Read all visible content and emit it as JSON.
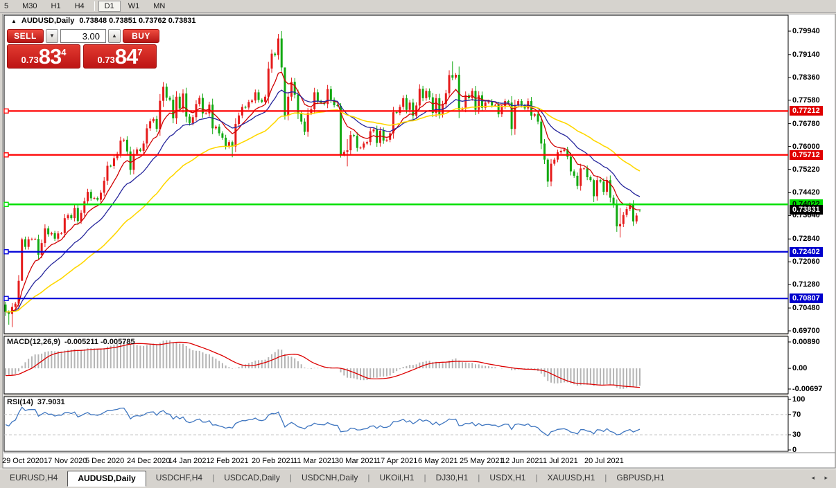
{
  "toolbar": {
    "timeframes": [
      "5",
      "M30",
      "H1",
      "H4",
      "D1",
      "W1",
      "MN"
    ],
    "active": "D1"
  },
  "chart": {
    "title_symbol": "AUDUSD,Daily",
    "title_ohlc": "0.73848 0.73851 0.73762 0.73831"
  },
  "trade": {
    "sell_label": "SELL",
    "buy_label": "BUY",
    "volume": "3.00",
    "sell_price": {
      "prefix": "0.73",
      "big": "83",
      "sup": "4"
    },
    "buy_price": {
      "prefix": "0.73",
      "big": "84",
      "sup": "7"
    }
  },
  "price_axis": {
    "ticks": [
      {
        "label": "0.79940",
        "value": 0.7994
      },
      {
        "label": "0.79140",
        "value": 0.7914
      },
      {
        "label": "0.78360",
        "value": 0.7836
      },
      {
        "label": "0.77580",
        "value": 0.7758
      },
      {
        "label": "0.76780",
        "value": 0.7678
      },
      {
        "label": "0.76000",
        "value": 0.76
      },
      {
        "label": "0.75220",
        "value": 0.7522
      },
      {
        "label": "0.74420",
        "value": 0.7442
      },
      {
        "label": "0.73640",
        "value": 0.7364
      },
      {
        "label": "0.72840",
        "value": 0.7284
      },
      {
        "label": "0.72060",
        "value": 0.7206
      },
      {
        "label": "0.71280",
        "value": 0.7128
      },
      {
        "label": "0.70480",
        "value": 0.7048
      },
      {
        "label": "0.69700",
        "value": 0.697
      }
    ]
  },
  "hlines": [
    {
      "label": "0.77212",
      "value": 0.77212,
      "color": "red"
    },
    {
      "label": "0.75712",
      "value": 0.75712,
      "color": "red"
    },
    {
      "label": "0.74022",
      "value": 0.74022,
      "color": "green"
    },
    {
      "label": "0.72402",
      "value": 0.72402,
      "color": "blue"
    },
    {
      "label": "0.70807",
      "value": 0.70807,
      "color": "blue"
    }
  ],
  "current_price": {
    "label": "0.73831",
    "value": 0.73831
  },
  "indicators": {
    "macd": {
      "label": "MACD(12,26,9)",
      "values_text": "-0.005211 -0.005785",
      "fast": 12,
      "slow": 26,
      "signal": 9,
      "axis": [
        {
          "label": "0.00890",
          "value": 0.0089
        },
        {
          "label": "0.00",
          "value": 0
        },
        {
          "label": "-0.00697",
          "value": -0.00697
        }
      ]
    },
    "rsi": {
      "label": "RSI(14)",
      "value_text": "37.9031",
      "period": 14,
      "levels": [
        70,
        30
      ],
      "axis": [
        {
          "label": "100",
          "value": 100
        },
        {
          "label": "70",
          "value": 70
        },
        {
          "label": "30",
          "value": 30
        },
        {
          "label": "0",
          "value": 0
        }
      ]
    }
  },
  "tabs": {
    "items": [
      "EURUSD,H4",
      "AUDUSD,Daily",
      "USDCHF,H4",
      "USDCAD,Daily",
      "USDCNH,Daily",
      "UKOil,H1",
      "DJ30,H1",
      "USDX,H1",
      "XAUUSD,H1",
      "GBPUSD,H1"
    ],
    "active_index": 1,
    "arrows": "◂ ▸"
  },
  "chart_data": {
    "type": "candlestick",
    "symbol": "AUDUSD",
    "timeframe": "Daily",
    "x_labels": [
      "29 Oct 2020",
      "17 Nov 2020",
      "5 Dec 2020",
      "24 Dec 2020",
      "14 Jan 2021",
      "2 Feb 2021",
      "20 Feb 2021",
      "11 Mar 2021",
      "30 Mar 2021",
      "17 Apr 2021",
      "6 May 2021",
      "25 May 2021",
      "12 Jun 2021",
      "1 Jul 2021",
      "20 Jul 2021"
    ],
    "first_open": 0.706,
    "closes": [
      0.7035,
      0.7028,
      0.7052,
      0.7063,
      0.7141,
      0.7283,
      0.7257,
      0.7283,
      0.7284,
      0.7284,
      0.723,
      0.727,
      0.732,
      0.73,
      0.7304,
      0.7285,
      0.7303,
      0.7304,
      0.7355,
      0.7365,
      0.7355,
      0.739,
      0.7345,
      0.7373,
      0.7413,
      0.7445,
      0.7423,
      0.7424,
      0.7418,
      0.7442,
      0.7483,
      0.7534,
      0.7533,
      0.756,
      0.7575,
      0.762,
      0.7623,
      0.7583,
      0.752,
      0.7575,
      0.759,
      0.7585,
      0.761,
      0.7662,
      0.7686,
      0.7694,
      0.766,
      0.7756,
      0.7804,
      0.7767,
      0.776,
      0.7696,
      0.777,
      0.773,
      0.7781,
      0.7702,
      0.768,
      0.77,
      0.7745,
      0.7766,
      0.7713,
      0.7713,
      0.7743,
      0.7662,
      0.7668,
      0.7645,
      0.763,
      0.76,
      0.7615,
      0.76,
      0.7677,
      0.7706,
      0.7735,
      0.7733,
      0.7752,
      0.7757,
      0.7785,
      0.7759,
      0.7753,
      0.777,
      0.7866,
      0.7917,
      0.7912,
      0.7969,
      0.787,
      0.7706,
      0.777,
      0.7821,
      0.7777,
      0.7711,
      0.7685,
      0.765,
      0.7714,
      0.7727,
      0.7785,
      0.7755,
      0.775,
      0.7745,
      0.7796,
      0.776,
      0.7741,
      0.7739,
      0.7572,
      0.7581,
      0.7587,
      0.7639,
      0.7636,
      0.7595,
      0.7596,
      0.761,
      0.7615,
      0.7652,
      0.7658,
      0.7612,
      0.7654,
      0.762,
      0.7623,
      0.7645,
      0.7717,
      0.7715,
      0.7735,
      0.7765,
      0.7725,
      0.775,
      0.7705,
      0.774,
      0.7797,
      0.7765,
      0.779,
      0.7768,
      0.7715,
      0.7765,
      0.771,
      0.7745,
      0.7782,
      0.7844,
      0.7835,
      0.7845,
      0.7725,
      0.773,
      0.7775,
      0.7765,
      0.779,
      0.7725,
      0.7775,
      0.7732,
      0.775,
      0.7755,
      0.774,
      0.7742,
      0.771,
      0.7735,
      0.7755,
      0.775,
      0.766,
      0.774,
      0.7755,
      0.774,
      0.773,
      0.7755,
      0.7705,
      0.771,
      0.7685,
      0.761,
      0.7555,
      0.748,
      0.7541,
      0.7555,
      0.758,
      0.7585,
      0.759,
      0.7565,
      0.7515,
      0.75,
      0.7465,
      0.7525,
      0.7525,
      0.7495,
      0.7485,
      0.743,
      0.7485,
      0.748,
      0.7445,
      0.7485,
      0.7425,
      0.74,
      0.7327,
      0.7335,
      0.7366,
      0.7386,
      0.7401,
      0.7344,
      0.7364,
      0.7383
    ],
    "extremes": {
      "0": [
        0.707,
        0.7021,
        0.706
      ],
      "1": [
        0.704,
        0.6991
      ],
      "2": [
        0.7065,
        0.6983
      ],
      "5": [
        0.7288,
        0.7222
      ],
      "48": [
        0.782,
        0.7735
      ],
      "69": [
        0.762,
        0.7563
      ],
      "84": [
        0.7994,
        0.7858
      ],
      "85": [
        0.7772,
        0.7692
      ],
      "102": [
        0.7748,
        0.7562
      ],
      "104": [
        0.7625,
        0.7532
      ],
      "136": [
        0.7891,
        0.7826
      ],
      "165": [
        0.756,
        0.7462
      ],
      "179": [
        0.749,
        0.741
      ],
      "187": [
        0.739,
        0.7289
      ],
      "193": [
        0.73851,
        0.73762,
        0.73848
      ]
    },
    "moving_averages": [
      {
        "name": "fast",
        "period": 9,
        "color": "#d00000"
      },
      {
        "name": "medium",
        "period": 20,
        "color": "#26269c"
      },
      {
        "name": "slow",
        "period": 45,
        "color": "#ffd700"
      }
    ],
    "colors": {
      "up": "#e51b1b",
      "down": "#12a912",
      "macd_histogram": "#b4b4b4",
      "macd_signal": "#dd0000",
      "rsi_line": "#3f76c0",
      "hline_red": "#ff0000",
      "hline_green": "#00e000",
      "hline_blue": "#0000d8"
    }
  }
}
